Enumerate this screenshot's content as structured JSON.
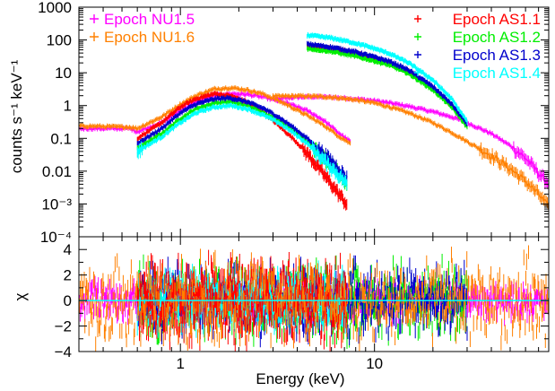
{
  "chart_data": [
    {
      "type": "line",
      "xscale": "log",
      "yscale": "log",
      "xlim": [
        0.3,
        79
      ],
      "ylim": [
        0.0001,
        1000
      ],
      "xlabel": "",
      "ylabel": "counts s⁻¹ keV⁻¹",
      "x_ticks": [
        {
          "value": 1,
          "label": "1"
        },
        {
          "value": 10,
          "label": "10"
        }
      ],
      "y_ticks": [
        {
          "value": 0.0001,
          "label": "10⁻⁴"
        },
        {
          "value": 0.001,
          "label": "10⁻³"
        },
        {
          "value": 0.01,
          "label": "0.01"
        },
        {
          "value": 0.1,
          "label": "0.1"
        },
        {
          "value": 1,
          "label": "1"
        },
        {
          "value": 10,
          "label": "10"
        },
        {
          "value": 100,
          "label": "100"
        },
        {
          "value": 1000,
          "label": "1000"
        }
      ],
      "legend_left": [
        "Epoch NU1.5",
        "Epoch NU1.6"
      ],
      "legend_right": [
        "Epoch AS1.1",
        "Epoch AS1.2",
        "Epoch AS1.3",
        "Epoch AS1.4"
      ],
      "series": [
        {
          "name": "Epoch NU1.5",
          "color": "#ff00ff",
          "x": [
            3,
            4,
            5,
            6,
            8,
            10,
            12,
            15,
            20,
            25,
            30,
            40,
            50,
            60,
            70,
            79
          ],
          "y": [
            1.6,
            1.8,
            1.85,
            1.8,
            1.6,
            1.4,
            1.2,
            0.95,
            0.65,
            0.45,
            0.3,
            0.14,
            0.06,
            0.025,
            0.009,
            0.004
          ]
        },
        {
          "name": "Epoch NU1.6",
          "color": "#ff8000",
          "x": [
            3,
            4,
            5,
            6,
            8,
            10,
            12,
            15,
            20,
            25,
            30,
            40,
            50,
            60,
            70,
            79
          ],
          "y": [
            1.9,
            1.95,
            1.9,
            1.8,
            1.5,
            1.2,
            0.9,
            0.6,
            0.3,
            0.15,
            0.08,
            0.03,
            0.012,
            0.005,
            0.002,
            0.0008
          ]
        },
        {
          "name": "Epoch NU1.5 (soft)",
          "color": "#ff00ff",
          "x": [
            0.3,
            0.55,
            0.6,
            0.8,
            1.0,
            1.2,
            1.5,
            1.8,
            2.2,
            2.7,
            3.5,
            4.5,
            5.5,
            6.5,
            7.5
          ],
          "y": [
            0.2,
            0.2,
            0.16,
            0.3,
            0.7,
            1.3,
            2.0,
            2.3,
            2.2,
            1.8,
            1.2,
            0.7,
            0.35,
            0.15,
            0.08
          ]
        },
        {
          "name": "Epoch NU1.6 (soft)",
          "color": "#ff8000",
          "x": [
            0.3,
            0.55,
            0.6,
            0.8,
            1.0,
            1.2,
            1.5,
            1.8,
            2.2,
            2.7,
            3.5,
            4.5,
            5.5,
            6.5,
            7.5
          ],
          "y": [
            0.24,
            0.22,
            0.2,
            0.45,
            1.1,
            2.0,
            3.2,
            3.5,
            3.0,
            2.2,
            1.1,
            0.5,
            0.25,
            0.12,
            0.07
          ]
        },
        {
          "name": "Epoch AS1.1",
          "color": "#ff0000",
          "x": [
            0.6,
            0.8,
            1.0,
            1.2,
            1.5,
            1.8,
            2.2,
            2.7,
            3.2,
            3.8,
            4.5,
            5.2,
            6.0,
            6.8,
            7.2
          ],
          "y": [
            0.1,
            0.3,
            0.9,
            1.6,
            2.3,
            2.0,
            1.3,
            0.6,
            0.25,
            0.1,
            0.035,
            0.012,
            0.004,
            0.0015,
            0.001
          ]
        },
        {
          "name": "Epoch AS1.2",
          "color": "#00ee00",
          "x": [
            0.6,
            0.8,
            1.0,
            1.2,
            1.5,
            1.8,
            2.2,
            2.7,
            3.2,
            3.8,
            4.5,
            5.2,
            6.0,
            6.8,
            7.2
          ],
          "y": [
            0.05,
            0.14,
            0.4,
            0.8,
            1.2,
            1.3,
            1.0,
            0.6,
            0.35,
            0.18,
            0.08,
            0.035,
            0.015,
            0.007,
            0.004
          ]
        },
        {
          "name": "Epoch AS1.3",
          "color": "#0000cc",
          "x": [
            0.6,
            0.8,
            1.0,
            1.2,
            1.5,
            1.8,
            2.2,
            2.7,
            3.2,
            3.8,
            4.5,
            5.2,
            6.0,
            6.8,
            7.2
          ],
          "y": [
            0.07,
            0.2,
            0.6,
            1.1,
            1.6,
            1.7,
            1.3,
            0.8,
            0.45,
            0.22,
            0.1,
            0.045,
            0.02,
            0.009,
            0.006
          ]
        },
        {
          "name": "Epoch AS1.4",
          "color": "#00ffff",
          "x": [
            0.6,
            0.8,
            1.0,
            1.2,
            1.5,
            1.8,
            2.2,
            2.7,
            3.2,
            3.8,
            4.5,
            5.2,
            6.0,
            6.8,
            7.2
          ],
          "y": [
            0.04,
            0.11,
            0.3,
            0.6,
            0.9,
            1.0,
            0.8,
            0.5,
            0.3,
            0.15,
            0.07,
            0.03,
            0.013,
            0.006,
            0.004
          ]
        },
        {
          "name": "Epoch AS1.1 (hard)",
          "color": "#ff0000",
          "x": [
            4.5,
            6,
            8,
            10,
            12,
            15,
            20,
            25,
            30
          ],
          "y": [
            70,
            55,
            40,
            28,
            20,
            11,
            3.5,
            1.0,
            0.25
          ]
        },
        {
          "name": "Epoch AS1.2 (hard)",
          "color": "#00ee00",
          "x": [
            4.5,
            6,
            8,
            10,
            12,
            15,
            20,
            25,
            30
          ],
          "y": [
            55,
            45,
            32,
            23,
            17,
            9.5,
            3.0,
            0.9,
            0.22
          ]
        },
        {
          "name": "Epoch AS1.3 (hard)",
          "color": "#0000cc",
          "x": [
            4.5,
            6,
            8,
            10,
            12,
            15,
            20,
            25,
            30
          ],
          "y": [
            75,
            60,
            43,
            30,
            22,
            12,
            3.8,
            1.1,
            0.27
          ]
        },
        {
          "name": "Epoch AS1.4 (hard)",
          "color": "#00ffff",
          "x": [
            4.5,
            6,
            8,
            10,
            12,
            15,
            20,
            25,
            30
          ],
          "y": [
            140,
            115,
            80,
            55,
            38,
            20,
            6.0,
            1.6,
            0.33
          ]
        }
      ]
    },
    {
      "type": "line",
      "xscale": "log",
      "xlim": [
        0.3,
        79
      ],
      "ylim": [
        -4,
        5
      ],
      "xlabel": "Energy (keV)",
      "ylabel": "χ",
      "x_ticks": [
        {
          "value": 1,
          "label": "1"
        },
        {
          "value": 10,
          "label": "10"
        }
      ],
      "y_ticks": [
        {
          "value": -4,
          "label": "−4"
        },
        {
          "value": -2,
          "label": "−2"
        },
        {
          "value": 0,
          "label": "0"
        },
        {
          "value": 2,
          "label": "2"
        },
        {
          "value": 4,
          "label": "4"
        }
      ],
      "reference_line": {
        "y": 0,
        "color": "#00ffff"
      },
      "residual_colors": [
        "#ff00ff",
        "#ff8000",
        "#00ee00",
        "#0000cc",
        "#00ffff",
        "#ff0000"
      ],
      "residual_bands": [
        {
          "color": "#ff00ff",
          "xmin": 0.3,
          "xmax": 79,
          "spread": 1.2
        },
        {
          "color": "#00ee00",
          "xmin": 0.6,
          "xmax": 30,
          "spread": 2.6
        },
        {
          "color": "#0000cc",
          "xmin": 0.6,
          "xmax": 30,
          "spread": 2.4
        },
        {
          "color": "#00ffff",
          "xmin": 0.6,
          "xmax": 7.2,
          "spread": 2.0
        },
        {
          "color": "#ff0000",
          "xmin": 0.6,
          "xmax": 7.2,
          "spread": 2.8
        },
        {
          "color": "#ff8000",
          "xmin": 0.3,
          "xmax": 79,
          "spread": 3.0
        }
      ]
    }
  ]
}
